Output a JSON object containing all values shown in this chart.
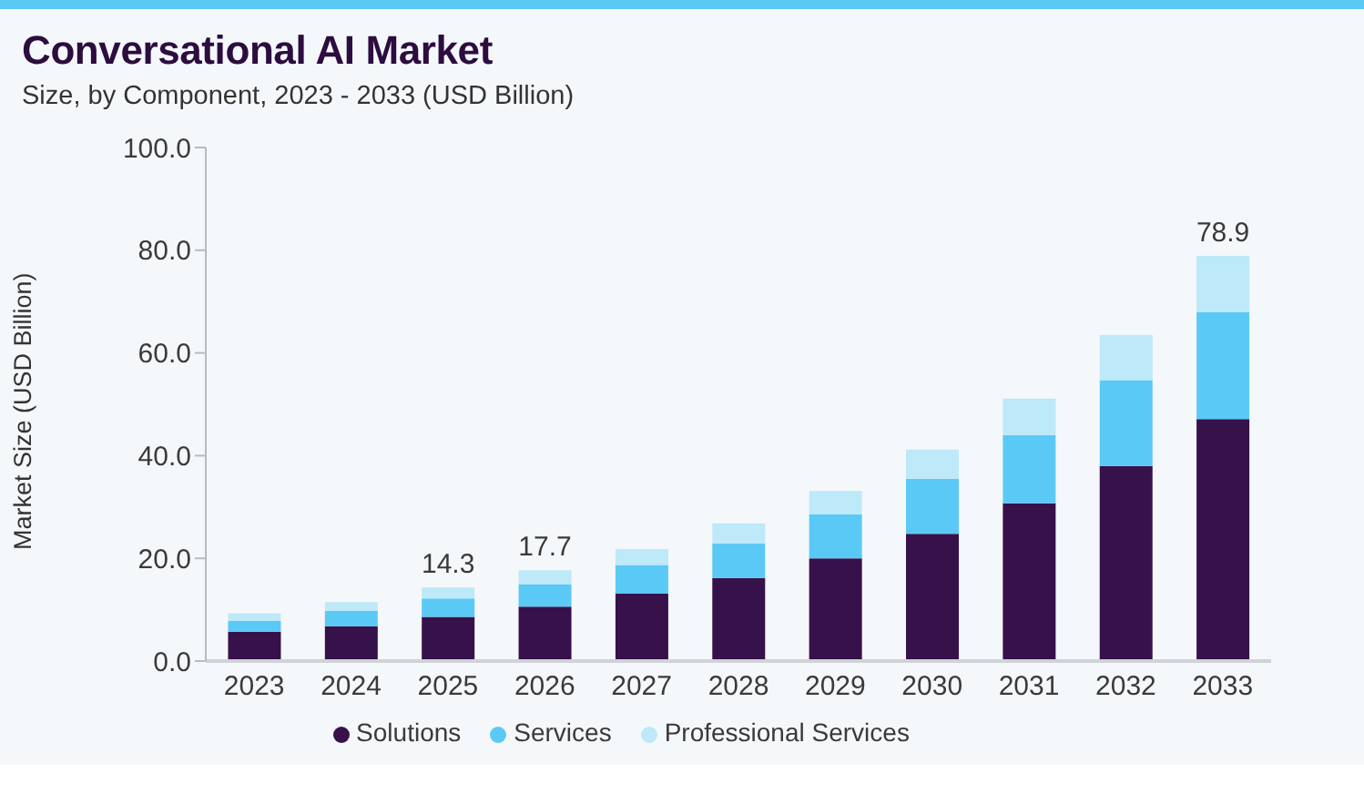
{
  "chart_data": {
    "type": "bar",
    "title": "Conversational AI Market",
    "subtitle": "Size, by Component, 2023 - 2033 (USD Billion)",
    "ylabel": "Market Size (USD Billion)",
    "categories": [
      "2023",
      "2024",
      "2025",
      "2026",
      "2027",
      "2028",
      "2029",
      "2030",
      "2031",
      "2032",
      "2033"
    ],
    "series": [
      {
        "name": "Solutions",
        "color": "#37114a",
        "values": [
          5.7,
          6.8,
          8.6,
          10.6,
          13.1,
          16.2,
          20.0,
          24.8,
          30.7,
          38.0,
          47.1
        ]
      },
      {
        "name": "Services",
        "color": "#5bc9f5",
        "values": [
          2.1,
          3.0,
          3.6,
          4.4,
          5.6,
          6.7,
          8.6,
          10.7,
          13.3,
          16.7,
          20.8
        ]
      },
      {
        "name": "Professional Services",
        "color": "#bde9f9",
        "values": [
          1.5,
          1.7,
          2.1,
          2.7,
          3.1,
          3.9,
          4.5,
          5.7,
          7.1,
          8.8,
          11.0
        ]
      }
    ],
    "stacked": true,
    "totals": [
      null,
      null,
      "14.3",
      "17.7",
      null,
      null,
      null,
      null,
      null,
      null,
      "78.9"
    ],
    "ylim": [
      0,
      100
    ],
    "yticks": [
      {
        "value": 0,
        "label": "0.0"
      },
      {
        "value": 20,
        "label": "20.0"
      },
      {
        "value": 40,
        "label": "40.0"
      },
      {
        "value": 60,
        "label": "60.0"
      },
      {
        "value": 80,
        "label": "80.0"
      },
      {
        "value": 100,
        "label": "100.0"
      }
    ],
    "grid": false,
    "legend": "bottom"
  }
}
